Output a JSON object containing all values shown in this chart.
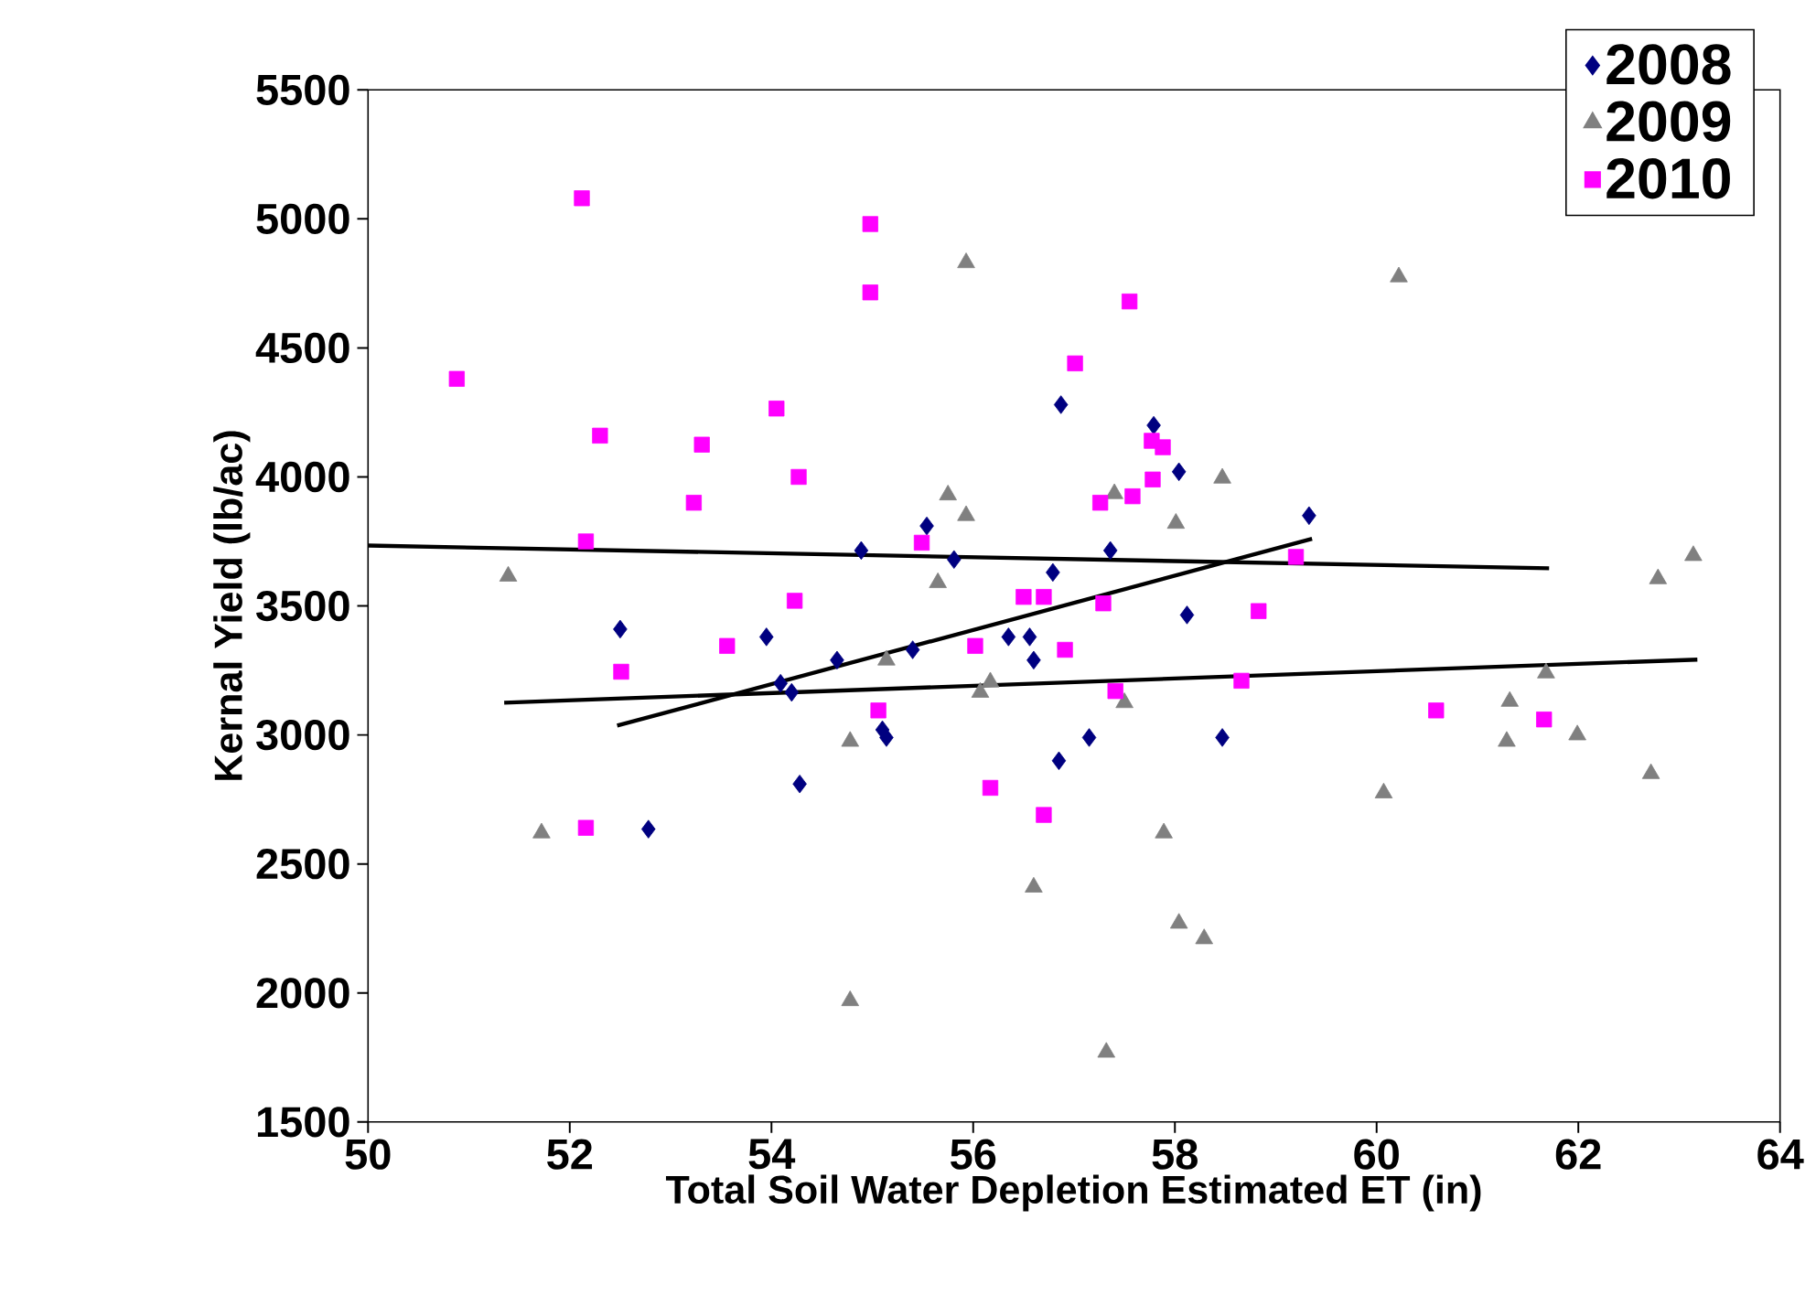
{
  "chart_data": {
    "type": "scatter",
    "xlabel": "Total Soil Water Depletion Estimated ET (in)",
    "ylabel": "Kernal Yield (lb/ac)",
    "xlim": [
      50,
      64
    ],
    "xticks": [
      50,
      52,
      54,
      56,
      58,
      60,
      62,
      64
    ],
    "ylim": [
      1500,
      5500
    ],
    "yticks": [
      1500,
      2000,
      2500,
      3000,
      3500,
      4000,
      4500,
      5000,
      5500
    ],
    "legend": "top right",
    "series": [
      {
        "name": "2008",
        "color": "#000080",
        "marker": "diamond",
        "x": [
          52.5,
          52.78,
          53.95,
          54.09,
          54.2,
          54.28,
          54.65,
          54.89,
          55.1,
          55.14,
          55.4,
          55.54,
          55.81,
          56.35,
          56.56,
          56.6,
          56.79,
          56.87,
          56.85,
          57.15,
          57.36,
          57.79,
          58.04,
          58.12,
          58.47,
          59.33
        ],
        "values": [
          3410,
          2635,
          3380,
          3200,
          3165,
          2810,
          3290,
          3715,
          3020,
          2990,
          3330,
          3810,
          3680,
          3380,
          3380,
          3290,
          3630,
          4280,
          2900,
          2990,
          3715,
          4200,
          4020,
          3465,
          2990,
          3850
        ]
      },
      {
        "name": "2009",
        "color": "#808080",
        "marker": "triangle",
        "x": [
          51.39,
          51.72,
          54.78,
          54.78,
          55.14,
          55.65,
          55.75,
          55.93,
          55.93,
          56.07,
          56.17,
          56.6,
          57.32,
          57.4,
          57.5,
          57.89,
          58.01,
          58.04,
          58.29,
          58.47,
          60.07,
          60.22,
          61.29,
          61.32,
          61.68,
          61.99,
          62.72,
          62.79,
          63.14
        ],
        "values": [
          3615,
          2620,
          1970,
          2975,
          3290,
          3590,
          3930,
          4830,
          3850,
          3165,
          3205,
          2410,
          1770,
          3935,
          3125,
          2620,
          3820,
          2270,
          2210,
          3995,
          2775,
          4775,
          2975,
          3130,
          3240,
          3000,
          2850,
          3605,
          3695
        ]
      },
      {
        "name": "2010",
        "color": "#ff00ff",
        "marker": "square",
        "x": [
          50.88,
          52.12,
          52.16,
          52.16,
          52.3,
          52.51,
          53.23,
          53.31,
          53.56,
          54.05,
          54.27,
          54.23,
          54.98,
          54.98,
          55.06,
          55.49,
          56.02,
          56.17,
          56.5,
          56.7,
          56.7,
          56.91,
          57.01,
          57.26,
          57.29,
          57.41,
          57.55,
          57.58,
          57.77,
          57.78,
          57.88,
          58.66,
          58.83,
          59.2,
          60.59,
          61.66
        ],
        "values": [
          4380,
          5080,
          3750,
          2640,
          4160,
          3245,
          3900,
          4125,
          3345,
          4265,
          4000,
          3520,
          4980,
          4715,
          3095,
          3745,
          3345,
          2795,
          3535,
          3535,
          2690,
          3330,
          4440,
          3900,
          3510,
          3170,
          4680,
          3925,
          4140,
          3990,
          4115,
          3210,
          3480,
          3690,
          3095,
          3060
        ]
      },
      {
        "type": "line",
        "color": "#000000",
        "marker": "none",
        "x": [
          50,
          61.71
        ],
        "values": [
          3734,
          3646
        ]
      },
      {
        "type": "line",
        "color": "#000000",
        "marker": "none",
        "x": [
          52.47,
          59.36
        ],
        "values": [
          3036,
          3760
        ]
      },
      {
        "type": "line",
        "color": "#000000",
        "marker": "none",
        "x": [
          51.35,
          63.18
        ],
        "values": [
          3125,
          3292
        ]
      }
    ]
  }
}
